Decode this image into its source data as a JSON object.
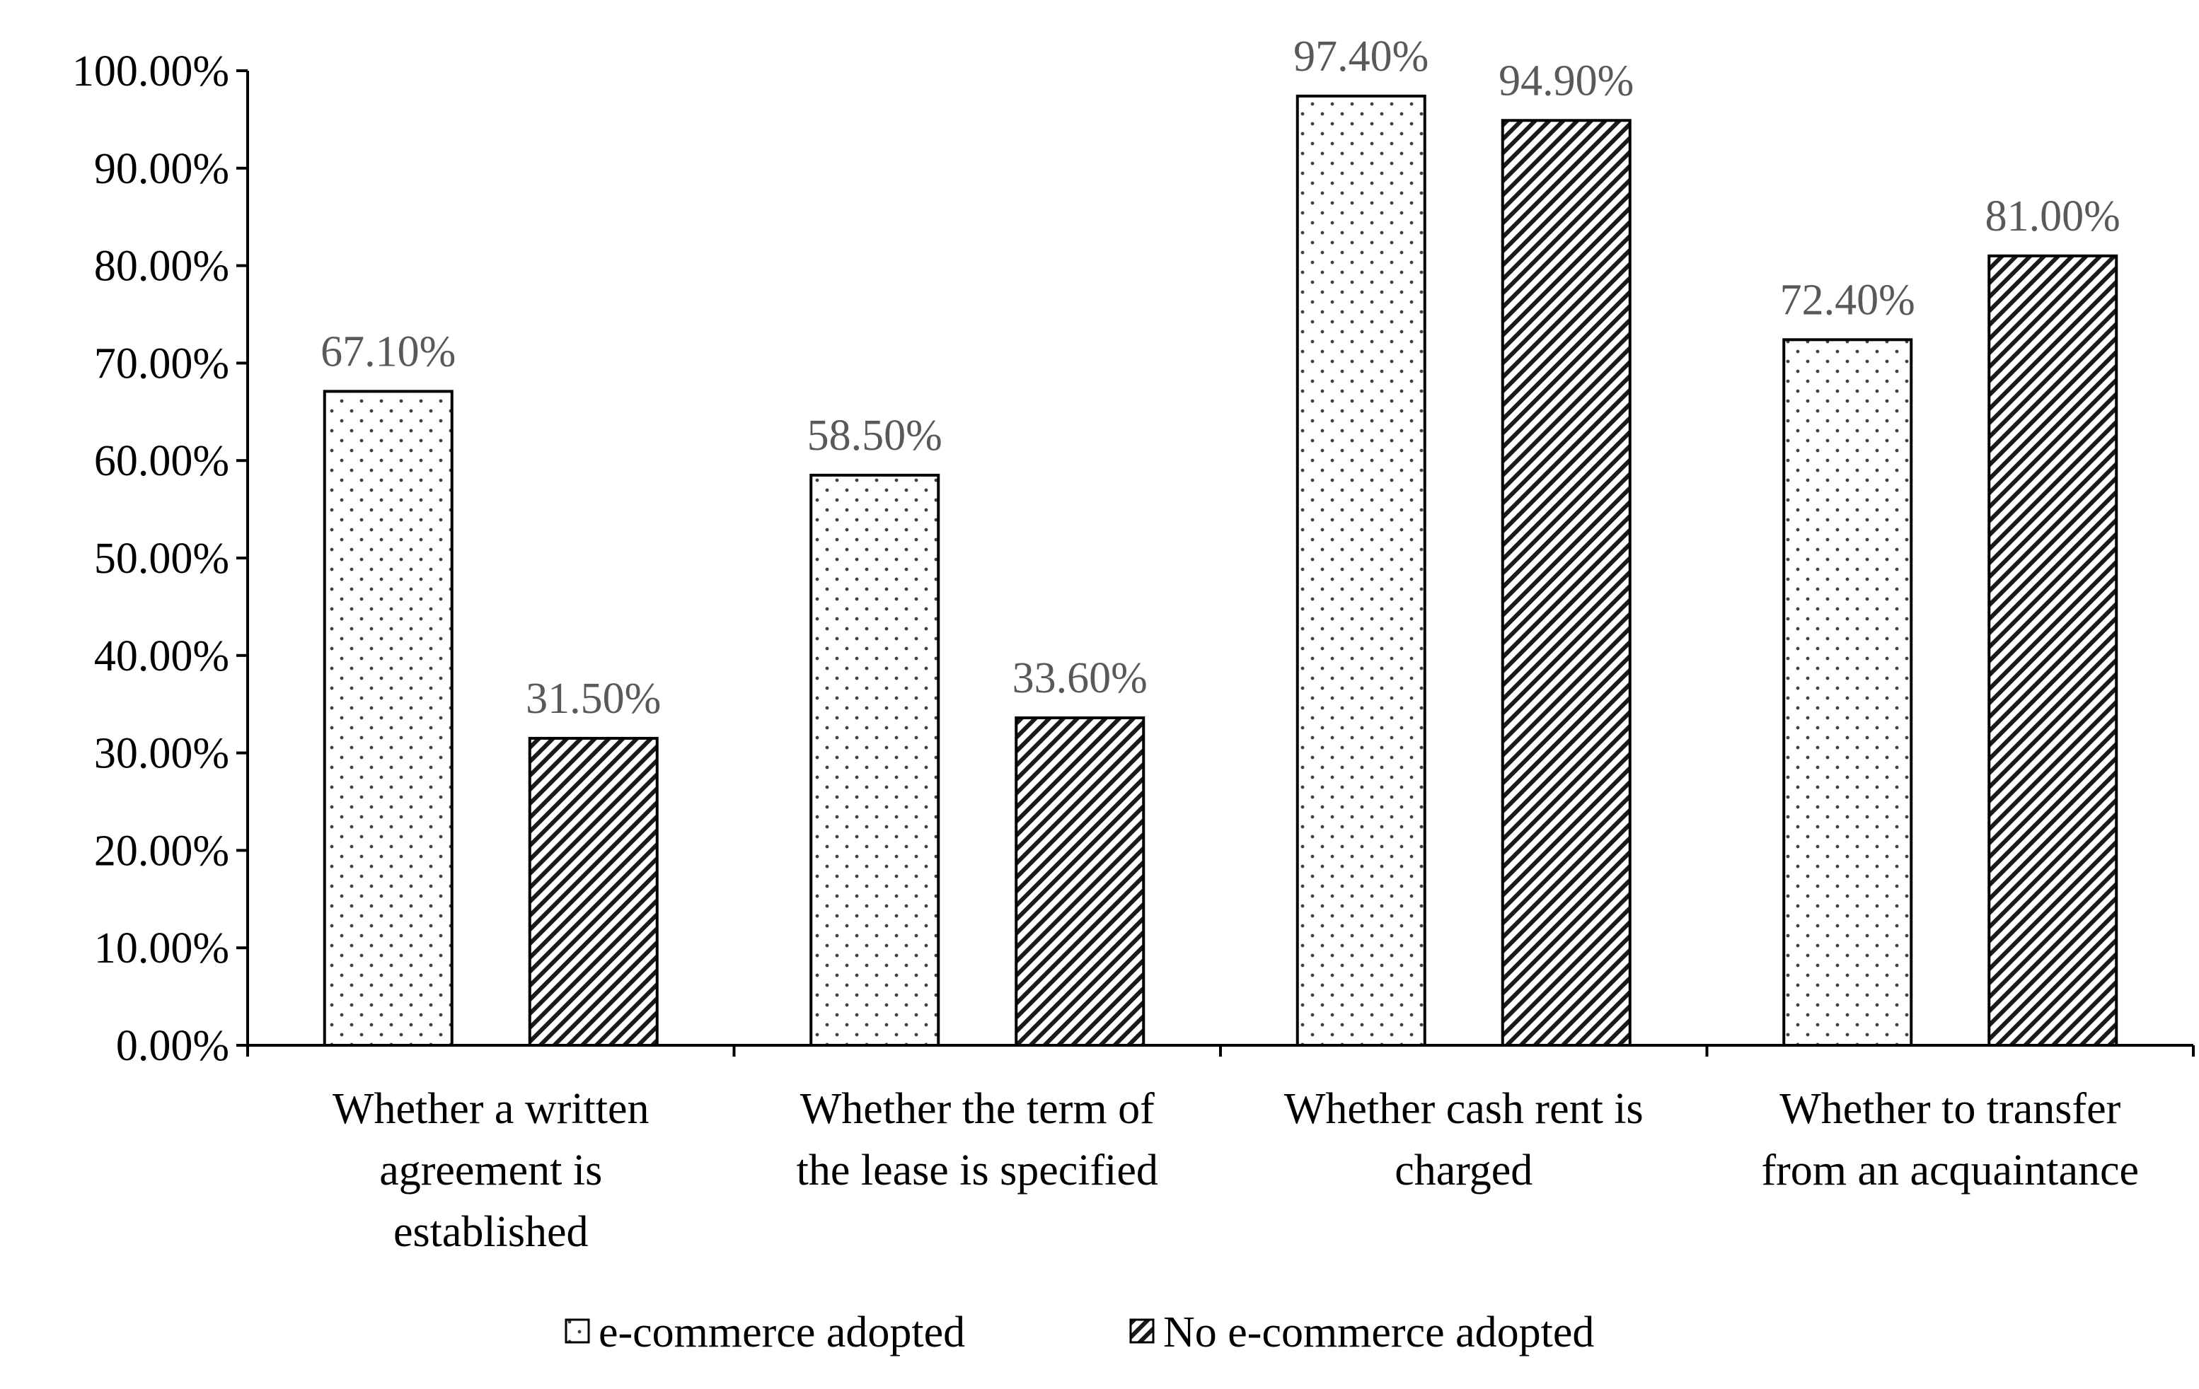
{
  "chart_data": {
    "type": "bar",
    "title": "",
    "xlabel": "",
    "ylabel": "",
    "ylim": [
      0,
      100
    ],
    "ytick_step": 10,
    "ytick_format": "percent_2dp",
    "categories": [
      [
        "Whether a written",
        "agreement is",
        "established"
      ],
      [
        "Whether the term of",
        "the lease is specified"
      ],
      [
        "Whether cash rent is",
        "charged"
      ],
      [
        "Whether to transfer",
        "from an acquaintance"
      ]
    ],
    "series": [
      {
        "name": "e-commerce adopted",
        "pattern": "dots",
        "values": [
          67.1,
          58.5,
          97.4,
          72.4
        ],
        "labels": [
          "67.10%",
          "58.50%",
          "97.40%",
          "72.40%"
        ]
      },
      {
        "name": "No e-commerce adopted",
        "pattern": "diagonal",
        "values": [
          31.5,
          33.6,
          94.9,
          81.0
        ],
        "labels": [
          "31.50%",
          "33.60%",
          "94.90%",
          "81.00%"
        ]
      }
    ],
    "legend_position": "bottom-center",
    "grid": false
  },
  "colors": {
    "axis": "#000000",
    "bar_outline": "#000000",
    "data_label": "#595959",
    "pattern": "#404040"
  }
}
